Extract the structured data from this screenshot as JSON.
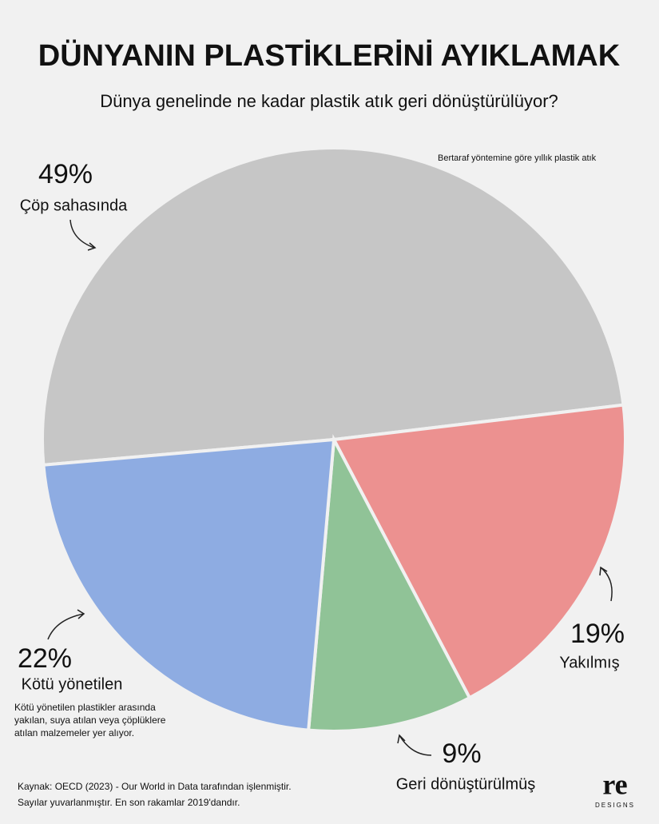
{
  "chart_data": {
    "type": "pie",
    "title": "DÜNYANIN PLASTİKLERİNİ AYIKLAMAK",
    "subtitle": "Dünya genelinde ne kadar plastik atık geri dönüştürülüyor?",
    "caption": "Bertaraf yöntemine göre yıllık plastik atık",
    "categories": [
      "Çöp sahasında",
      "Yakılmış",
      "Geri dönüştürülmüş",
      "Kötü yönetilen"
    ],
    "values": [
      49,
      19,
      9,
      22
    ],
    "value_labels": [
      "49%",
      "19%",
      "9%",
      "22%"
    ],
    "colors": [
      "#a3a3a3",
      "#e8413f",
      "#3f9c4c",
      "#3d73d6"
    ],
    "note": [
      "Kötü yönetilen plastikler arasında",
      "yakılan, suya atılan veya çöplüklere",
      "atılan malzemeler yer alıyor."
    ],
    "source": [
      "Kaynak: OECD (2023) - Our World in Data tarafından işlenmiştir.",
      "Sayılar yuvarlanmıştır. En son rakamlar 2019'dandır."
    ],
    "logo": [
      "re",
      "DESIGNS"
    ]
  }
}
